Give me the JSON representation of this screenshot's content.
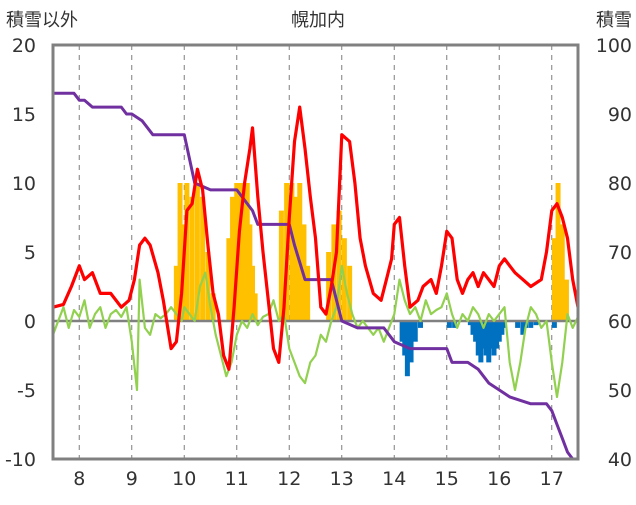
{
  "chart_data": {
    "type": "line",
    "title": "幌加内",
    "ylabel_left": "積雪以外",
    "ylabel_right": "積雪",
    "left_axis": {
      "ylim": [
        -10,
        20
      ],
      "ticks": [
        20,
        15,
        10,
        5,
        0,
        -5,
        -10
      ]
    },
    "right_axis": {
      "ylim": [
        40,
        100
      ],
      "ticks": [
        100,
        90,
        80,
        70,
        60,
        50,
        40
      ]
    },
    "x_axis": {
      "xlim": [
        7.5,
        17.5
      ],
      "ticks": [
        "8",
        "9",
        "10",
        "11",
        "12",
        "13",
        "14",
        "15",
        "16",
        "17"
      ]
    },
    "grid": {
      "vertical_dashed": true,
      "horizontal": false
    },
    "colors": {
      "red_line": "#ff0000",
      "green_line": "#92d050",
      "purple_line": "#7030a0",
      "yellow_bar": "#ffc000",
      "blue_bar": "#0070c0",
      "frame": "#808080",
      "zero_line": "#808080"
    },
    "series_red": [
      [
        7.5,
        1.0
      ],
      [
        7.7,
        1.2
      ],
      [
        7.85,
        2.5
      ],
      [
        8.0,
        4.0
      ],
      [
        8.1,
        3.0
      ],
      [
        8.25,
        3.5
      ],
      [
        8.4,
        2.0
      ],
      [
        8.6,
        2.0
      ],
      [
        8.8,
        1.0
      ],
      [
        8.95,
        1.5
      ],
      [
        9.05,
        3.0
      ],
      [
        9.15,
        5.5
      ],
      [
        9.25,
        6.0
      ],
      [
        9.35,
        5.5
      ],
      [
        9.5,
        3.5
      ],
      [
        9.6,
        1.5
      ],
      [
        9.75,
        -2.0
      ],
      [
        9.85,
        -1.5
      ],
      [
        9.95,
        2.0
      ],
      [
        10.05,
        8.0
      ],
      [
        10.15,
        8.5
      ],
      [
        10.25,
        11.0
      ],
      [
        10.35,
        9.5
      ],
      [
        10.45,
        5.5
      ],
      [
        10.55,
        2.0
      ],
      [
        10.65,
        0.5
      ],
      [
        10.75,
        -2.5
      ],
      [
        10.85,
        -3.5
      ],
      [
        10.95,
        1.0
      ],
      [
        11.05,
        6.5
      ],
      [
        11.15,
        10.0
      ],
      [
        11.25,
        12.5
      ],
      [
        11.3,
        14.0
      ],
      [
        11.4,
        9.0
      ],
      [
        11.5,
        5.0
      ],
      [
        11.6,
        1.5
      ],
      [
        11.7,
        -2.0
      ],
      [
        11.8,
        -3.0
      ],
      [
        11.9,
        1.0
      ],
      [
        12.0,
        7.5
      ],
      [
        12.1,
        13.0
      ],
      [
        12.2,
        15.5
      ],
      [
        12.3,
        12.5
      ],
      [
        12.4,
        9.0
      ],
      [
        12.5,
        6.0
      ],
      [
        12.6,
        1.0
      ],
      [
        12.7,
        0.5
      ],
      [
        12.8,
        2.5
      ],
      [
        12.9,
        5.0
      ],
      [
        13.0,
        13.5
      ],
      [
        13.15,
        13.0
      ],
      [
        13.25,
        10.0
      ],
      [
        13.35,
        6.0
      ],
      [
        13.45,
        4.0
      ],
      [
        13.6,
        2.0
      ],
      [
        13.75,
        1.5
      ],
      [
        13.85,
        3.0
      ],
      [
        13.95,
        4.5
      ],
      [
        14.0,
        7.0
      ],
      [
        14.1,
        7.5
      ],
      [
        14.2,
        4.0
      ],
      [
        14.3,
        1.0
      ],
      [
        14.45,
        1.5
      ],
      [
        14.55,
        2.5
      ],
      [
        14.7,
        3.0
      ],
      [
        14.8,
        2.0
      ],
      [
        14.9,
        4.0
      ],
      [
        15.0,
        6.5
      ],
      [
        15.1,
        6.0
      ],
      [
        15.2,
        3.0
      ],
      [
        15.3,
        2.0
      ],
      [
        15.4,
        3.0
      ],
      [
        15.5,
        3.5
      ],
      [
        15.6,
        2.5
      ],
      [
        15.7,
        3.5
      ],
      [
        15.8,
        3.0
      ],
      [
        15.9,
        2.5
      ],
      [
        16.0,
        4.0
      ],
      [
        16.1,
        4.5
      ],
      [
        16.2,
        4.0
      ],
      [
        16.3,
        3.5
      ],
      [
        16.45,
        3.0
      ],
      [
        16.6,
        2.5
      ],
      [
        16.8,
        3.0
      ],
      [
        16.9,
        5.0
      ],
      [
        17.0,
        8.0
      ],
      [
        17.1,
        8.5
      ],
      [
        17.2,
        7.5
      ],
      [
        17.3,
        6.0
      ],
      [
        17.4,
        3.0
      ],
      [
        17.5,
        1.0
      ]
    ],
    "series_green": [
      [
        7.5,
        -1.0
      ],
      [
        7.6,
        0.0
      ],
      [
        7.7,
        1.0
      ],
      [
        7.8,
        -0.5
      ],
      [
        7.9,
        0.8
      ],
      [
        8.0,
        0.3
      ],
      [
        8.1,
        1.5
      ],
      [
        8.2,
        -0.5
      ],
      [
        8.3,
        0.5
      ],
      [
        8.4,
        1.0
      ],
      [
        8.5,
        -0.5
      ],
      [
        8.6,
        0.5
      ],
      [
        8.7,
        0.8
      ],
      [
        8.8,
        0.3
      ],
      [
        8.9,
        1.0
      ],
      [
        9.0,
        -1.5
      ],
      [
        9.1,
        -5.0
      ],
      [
        9.15,
        3.0
      ],
      [
        9.25,
        -0.5
      ],
      [
        9.35,
        -1.0
      ],
      [
        9.45,
        0.5
      ],
      [
        9.55,
        0.2
      ],
      [
        9.65,
        0.5
      ],
      [
        9.75,
        1.0
      ],
      [
        9.85,
        0.5
      ],
      [
        9.95,
        0.0
      ],
      [
        10.0,
        1.0
      ],
      [
        10.1,
        0.5
      ],
      [
        10.2,
        0.0
      ],
      [
        10.3,
        2.5
      ],
      [
        10.4,
        3.5
      ],
      [
        10.5,
        1.0
      ],
      [
        10.6,
        -1.0
      ],
      [
        10.7,
        -2.5
      ],
      [
        10.8,
        -4.0
      ],
      [
        10.9,
        -3.0
      ],
      [
        11.0,
        -1.0
      ],
      [
        11.1,
        0.0
      ],
      [
        11.2,
        -0.5
      ],
      [
        11.3,
        0.5
      ],
      [
        11.4,
        -0.3
      ],
      [
        11.5,
        0.3
      ],
      [
        11.6,
        0.5
      ],
      [
        11.7,
        1.5
      ],
      [
        11.8,
        0.0
      ],
      [
        11.9,
        0.5
      ],
      [
        12.0,
        -2.0
      ],
      [
        12.1,
        -3.0
      ],
      [
        12.2,
        -4.0
      ],
      [
        12.3,
        -4.5
      ],
      [
        12.4,
        -3.0
      ],
      [
        12.5,
        -2.5
      ],
      [
        12.6,
        -1.0
      ],
      [
        12.7,
        -1.5
      ],
      [
        12.8,
        0.0
      ],
      [
        12.9,
        1.0
      ],
      [
        13.0,
        4.0
      ],
      [
        13.1,
        2.0
      ],
      [
        13.2,
        0.5
      ],
      [
        13.3,
        -0.5
      ],
      [
        13.4,
        0.0
      ],
      [
        13.5,
        -0.5
      ],
      [
        13.6,
        -1.0
      ],
      [
        13.7,
        -0.5
      ],
      [
        13.8,
        -1.5
      ],
      [
        13.9,
        -0.5
      ],
      [
        14.0,
        0.5
      ],
      [
        14.1,
        3.0
      ],
      [
        14.2,
        1.5
      ],
      [
        14.3,
        0.5
      ],
      [
        14.4,
        1.0
      ],
      [
        14.5,
        0.0
      ],
      [
        14.6,
        1.5
      ],
      [
        14.7,
        0.5
      ],
      [
        14.8,
        0.8
      ],
      [
        14.9,
        1.0
      ],
      [
        15.0,
        2.0
      ],
      [
        15.1,
        0.5
      ],
      [
        15.2,
        -0.5
      ],
      [
        15.3,
        0.5
      ],
      [
        15.4,
        0.0
      ],
      [
        15.5,
        1.0
      ],
      [
        15.6,
        0.5
      ],
      [
        15.7,
        -0.5
      ],
      [
        15.8,
        0.5
      ],
      [
        15.9,
        0.0
      ],
      [
        16.0,
        0.5
      ],
      [
        16.1,
        1.0
      ],
      [
        16.2,
        -3.0
      ],
      [
        16.3,
        -5.0
      ],
      [
        16.4,
        -3.0
      ],
      [
        16.5,
        -0.5
      ],
      [
        16.6,
        1.0
      ],
      [
        16.7,
        0.5
      ],
      [
        16.8,
        -0.5
      ],
      [
        16.9,
        0.0
      ],
      [
        17.0,
        -3.0
      ],
      [
        17.1,
        -5.5
      ],
      [
        17.2,
        -3.0
      ],
      [
        17.3,
        0.5
      ],
      [
        17.4,
        -0.5
      ],
      [
        17.5,
        0.3
      ]
    ],
    "series_purple_right_axis": [
      [
        7.5,
        93
      ],
      [
        7.9,
        93
      ],
      [
        8.0,
        92
      ],
      [
        8.1,
        92
      ],
      [
        8.25,
        91
      ],
      [
        8.8,
        91
      ],
      [
        8.9,
        90
      ],
      [
        9.0,
        90
      ],
      [
        9.2,
        89
      ],
      [
        9.4,
        87
      ],
      [
        10.0,
        87
      ],
      [
        10.2,
        80
      ],
      [
        10.5,
        79
      ],
      [
        10.8,
        79
      ],
      [
        11.0,
        79
      ],
      [
        11.3,
        76
      ],
      [
        11.4,
        74
      ],
      [
        11.6,
        74
      ],
      [
        12.0,
        74
      ],
      [
        12.1,
        71
      ],
      [
        12.3,
        66
      ],
      [
        12.5,
        66
      ],
      [
        12.8,
        66
      ],
      [
        13.0,
        60
      ],
      [
        13.3,
        59
      ],
      [
        13.8,
        59
      ],
      [
        14.0,
        57
      ],
      [
        14.3,
        56
      ],
      [
        14.5,
        56
      ],
      [
        15.0,
        56
      ],
      [
        15.1,
        54
      ],
      [
        15.4,
        54
      ],
      [
        15.6,
        53
      ],
      [
        15.8,
        51
      ],
      [
        16.0,
        50
      ],
      [
        16.2,
        49
      ],
      [
        16.6,
        48
      ],
      [
        16.9,
        48
      ],
      [
        17.0,
        47
      ],
      [
        17.1,
        45
      ],
      [
        17.2,
        43
      ],
      [
        17.3,
        41
      ],
      [
        17.4,
        40
      ],
      [
        17.5,
        40
      ]
    ],
    "bars_yellow": [
      [
        9.85,
        4
      ],
      [
        9.92,
        10
      ],
      [
        9.97,
        7
      ],
      [
        10.05,
        10
      ],
      [
        10.15,
        9
      ],
      [
        10.25,
        10
      ],
      [
        10.35,
        9
      ],
      [
        10.45,
        5
      ],
      [
        10.55,
        2
      ],
      [
        10.85,
        6
      ],
      [
        10.92,
        9
      ],
      [
        11.0,
        10
      ],
      [
        11.08,
        10
      ],
      [
        11.15,
        9
      ],
      [
        11.2,
        10
      ],
      [
        11.25,
        7
      ],
      [
        11.3,
        4
      ],
      [
        11.35,
        2
      ],
      [
        11.85,
        8
      ],
      [
        11.95,
        10
      ],
      [
        12.05,
        10
      ],
      [
        12.12,
        9
      ],
      [
        12.2,
        10
      ],
      [
        12.28,
        7
      ],
      [
        12.35,
        4
      ],
      [
        12.75,
        5
      ],
      [
        12.85,
        7
      ],
      [
        12.95,
        8
      ],
      [
        13.05,
        6
      ],
      [
        13.15,
        4
      ],
      [
        17.05,
        6
      ],
      [
        17.12,
        10
      ],
      [
        17.2,
        7
      ],
      [
        17.28,
        3
      ]
    ],
    "bars_blue": [
      [
        14.15,
        -1.5
      ],
      [
        14.2,
        -2.5
      ],
      [
        14.25,
        -4.0
      ],
      [
        14.32,
        -3.0
      ],
      [
        14.4,
        -1.5
      ],
      [
        14.5,
        -0.5
      ],
      [
        15.05,
        -0.5
      ],
      [
        15.15,
        -0.5
      ],
      [
        15.45,
        -0.3
      ],
      [
        15.5,
        -1.0
      ],
      [
        15.55,
        -1.5
      ],
      [
        15.6,
        -2.5
      ],
      [
        15.65,
        -3.0
      ],
      [
        15.7,
        -2.0
      ],
      [
        15.75,
        -2.5
      ],
      [
        15.8,
        -3.0
      ],
      [
        15.85,
        -2.0
      ],
      [
        15.9,
        -2.5
      ],
      [
        15.95,
        -2.0
      ],
      [
        16.0,
        -1.5
      ],
      [
        16.05,
        -1.0
      ],
      [
        16.1,
        -0.5
      ],
      [
        16.35,
        -0.5
      ],
      [
        16.45,
        -1.0
      ],
      [
        16.5,
        -0.5
      ],
      [
        16.6,
        -0.5
      ],
      [
        16.7,
        -0.3
      ],
      [
        17.05,
        -0.5
      ]
    ]
  }
}
